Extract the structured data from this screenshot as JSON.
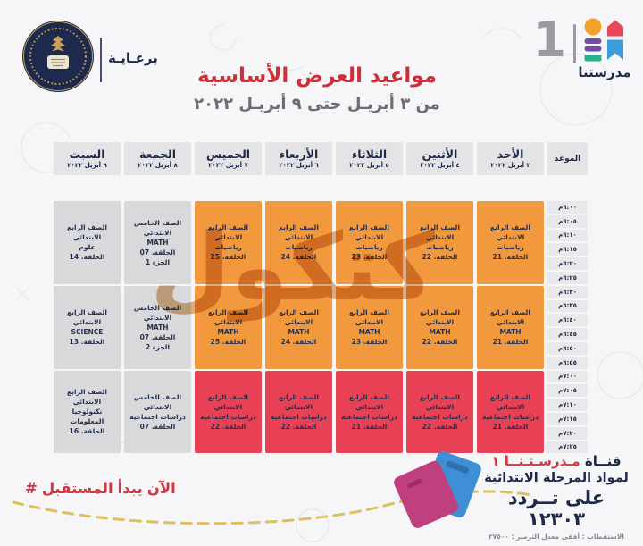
{
  "colors": {
    "page-bg": "#f6f6f8",
    "navy": "#1e2947",
    "title-red": "#ce2f39",
    "accent-red": "#d03540",
    "cell-orange": "#f2993d",
    "cell-red": "#e84055",
    "cell-gray": "#d9d9dc",
    "watermark": "#b96a16"
  },
  "header": {
    "sponsor_label": "برعـايـة",
    "channel_number": "1",
    "channel_name": "مدرستنا",
    "title": "مواعيد العرض الأساسية",
    "subtitle": "من ٣ أبريـل حتى ٩ أبريـل ٢٠٢٢"
  },
  "watermark_text": "كتكول",
  "schedule": {
    "time_header": "الموعد",
    "times": [
      "٦:٠٠م",
      "٦:٠٥م",
      "٦:١٠م",
      "٦:١٥م",
      "٦:٢٠م",
      "٦:٢٥م",
      "٦:٣٠م",
      "٦:٣٥م",
      "٦:٤٠م",
      "٦:٤٥م",
      "٦:٥٠م",
      "٦:٥٥م",
      "٧:٠٠م",
      "٧:٠٥م",
      "٧:١٠م",
      "٧:١٥م",
      "٧:٢٠م",
      "٧:٢٥م"
    ],
    "days": [
      {
        "name": "الأحد",
        "date": "٣ أبريل ٢٠٢٢",
        "cells": [
          {
            "color": "orange",
            "lines": [
              "الصف الرابع الابتدائي",
              "رياضيات",
              "الحلقة. 21"
            ]
          },
          {
            "color": "orange",
            "lines": [
              "الصف الرابع الابتدائي",
              "MATH",
              "الحلقة. 21"
            ]
          },
          {
            "color": "red",
            "lines": [
              "الصف الرابع الابتدائي",
              "دراسات اجتماعية",
              "الحلقة. 21"
            ]
          }
        ]
      },
      {
        "name": "الأثنين",
        "date": "٤ أبريل ٢٠٢٢",
        "cells": [
          {
            "color": "orange",
            "lines": [
              "الصف الرابع الابتدائي",
              "رياضيات",
              "الحلقة. 22"
            ]
          },
          {
            "color": "orange",
            "lines": [
              "الصف الرابع الابتدائي",
              "MATH",
              "الحلقة. 22"
            ]
          },
          {
            "color": "red",
            "lines": [
              "الصف الرابع الابتدائي",
              "دراسات اجتماعية",
              "الحلقة. 22"
            ]
          }
        ]
      },
      {
        "name": "الثلاثاء",
        "date": "٥ أبريل ٢٠٢٢",
        "cells": [
          {
            "color": "orange",
            "lines": [
              "الصف الرابع الابتدائي",
              "رياضيات",
              "الحلقة. 23"
            ]
          },
          {
            "color": "orange",
            "lines": [
              "الصف الرابع الابتدائي",
              "MATH",
              "الحلقة. 23"
            ]
          },
          {
            "color": "red",
            "lines": [
              "الصف الرابع الابتدائي",
              "دراسات اجتماعية",
              "الحلقة. 21"
            ]
          }
        ]
      },
      {
        "name": "الأربعاء",
        "date": "٦ أبريل ٢٠٢٢",
        "cells": [
          {
            "color": "orange",
            "lines": [
              "الصف الرابع الابتدائي",
              "رياضيات",
              "الحلقة. 24"
            ]
          },
          {
            "color": "orange",
            "lines": [
              "الصف الرابع الابتدائي",
              "MATH",
              "الحلقة. 24"
            ]
          },
          {
            "color": "red",
            "lines": [
              "الصف الرابع الابتدائي",
              "دراسات اجتماعية",
              "الحلقة. 22"
            ]
          }
        ]
      },
      {
        "name": "الخميس",
        "date": "٧ أبريل ٢٠٢٢",
        "cells": [
          {
            "color": "orange",
            "lines": [
              "الصف الرابع الابتدائي",
              "رياضيات",
              "الحلقة. 25"
            ]
          },
          {
            "color": "orange",
            "lines": [
              "الصف الرابع الابتدائي",
              "MATH",
              "الحلقة. 25"
            ]
          },
          {
            "color": "red",
            "lines": [
              "الصف الرابع الابتدائي",
              "دراسات اجتماعية",
              "الحلقة. 22"
            ]
          }
        ]
      },
      {
        "name": "الجمعة",
        "date": "٨ أبريل ٢٠٢٢",
        "cells": [
          {
            "color": "gray",
            "lines": [
              "الصف الخامس الابتدائي",
              "MATH",
              "الحلقة. 07",
              "الجزء 1"
            ]
          },
          {
            "color": "gray",
            "lines": [
              "الصف الخامس الابتدائي",
              "MATH",
              "الحلقة. 07",
              "الجزء 2"
            ]
          },
          {
            "color": "gray",
            "lines": [
              "الصف الخامس الابتدائي",
              "دراسات اجتماعية",
              "الحلقة. 07"
            ]
          }
        ]
      },
      {
        "name": "السبت",
        "date": "٩ أبريل ٢٠٢٢",
        "cells": [
          {
            "color": "gray",
            "lines": [
              "الصف الرابع الابتدائي",
              "علوم",
              "الحلقة. 14"
            ]
          },
          {
            "color": "gray",
            "lines": [
              "الصف الرابع الابتدائي",
              "SCIENCE",
              "الحلقة. 13"
            ]
          },
          {
            "color": "gray",
            "lines": [
              "الصف الرابع الابتدائي",
              "تكنولوجيا المعلومات",
              "الحلقة. 16"
            ]
          }
        ]
      }
    ]
  },
  "footer": {
    "hashtag_words": [
      "#",
      "المستقبل",
      "يبدأ",
      "الآن"
    ],
    "channel_word": "قنــاة",
    "channel_brand": "مـدرسـتـنــا ١",
    "line2": "لمواد المرحلة الابتدائية",
    "line3": "على تــردد ١٢٣٠٣",
    "line4": "الاستقطاب : أفقى      معدل الترميز : ٢٧٥٠٠"
  }
}
